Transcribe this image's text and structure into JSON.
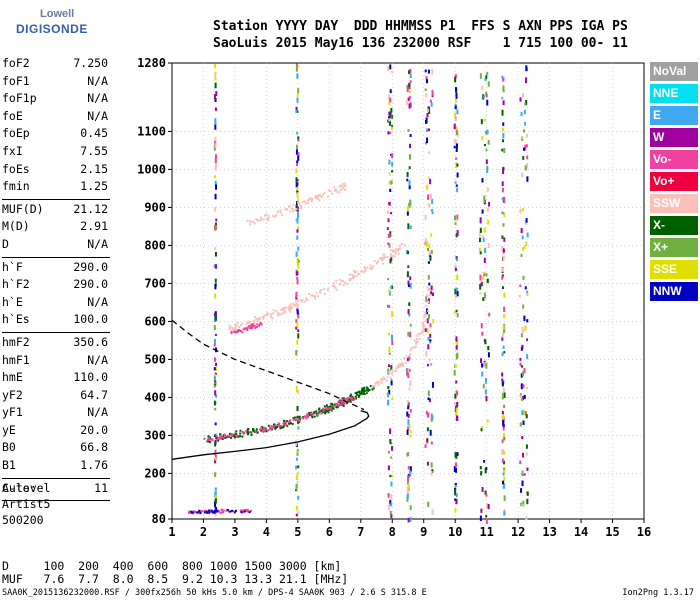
{
  "logo": {
    "line1": "Lowell",
    "line2": "DIGISONDE"
  },
  "header": {
    "line1": "Station YYYY DAY  DDD HHMMSS P1  FFS S AXN PPS IGA PS",
    "line2": "SaoLuis 2015 May16 136 232000 RSF    1 715 100 00- 11"
  },
  "params": [
    [
      {
        "k": "foF2",
        "v": "7.250"
      },
      {
        "k": "foF1",
        "v": "N/A"
      },
      {
        "k": "foF1p",
        "v": "N/A"
      },
      {
        "k": "foE",
        "v": "N/A"
      },
      {
        "k": "foEp",
        "v": "0.45"
      },
      {
        "k": "fxI",
        "v": "7.55"
      },
      {
        "k": "foEs",
        "v": "2.15"
      },
      {
        "k": "fmin",
        "v": "1.25"
      }
    ],
    [
      {
        "k": "MUF(D)",
        "v": "21.12"
      },
      {
        "k": "M(D)",
        "v": "2.91"
      },
      {
        "k": "D",
        "v": "N/A"
      }
    ],
    [
      {
        "k": "h`F",
        "v": "290.0"
      },
      {
        "k": "h`F2",
        "v": "290.0"
      },
      {
        "k": "h`E",
        "v": "N/A"
      },
      {
        "k": "h`Es",
        "v": "100.0"
      }
    ],
    [
      {
        "k": "hmF2",
        "v": "350.6"
      },
      {
        "k": "hmF1",
        "v": "N/A"
      },
      {
        "k": "hmE",
        "v": "110.0"
      },
      {
        "k": "yF2",
        "v": "64.7"
      },
      {
        "k": "yF1",
        "v": "N/A"
      },
      {
        "k": "yE",
        "v": "20.0"
      },
      {
        "k": "B0",
        "v": "66.8"
      },
      {
        "k": "B1",
        "v": "1.76"
      }
    ],
    [
      {
        "k": "C-level",
        "v": "11"
      }
    ]
  ],
  "auto": {
    "line1": "Auto:",
    "line2": "Artist5",
    "line3": "500200"
  },
  "muf_table": {
    "line1": "D     100  200  400  600  800 1000 1500 3000 [km]",
    "line2": "MUF   7.6  7.7  8.0  8.5  9.2 10.3 13.3 21.1 [MHz]"
  },
  "footer": {
    "left": "SAA0K_2015136232000.RSF / 300fx256h 50 kHs 5.0 km / DPS-4 SAA0K 903 / 2.6 S 315.8 E",
    "right": "Ion2Png 1.3.17"
  },
  "legend": [
    {
      "label": "NoVal",
      "color": "#a0a0a0"
    },
    {
      "label": "NNE",
      "color": "#00e0f0"
    },
    {
      "label": "E",
      "color": "#40a8f0"
    },
    {
      "label": "W",
      "color": "#a000a0"
    },
    {
      "label": "Vo-",
      "color": "#f040a0"
    },
    {
      "label": "Vo+",
      "color": "#f00040"
    },
    {
      "label": "SSW",
      "color": "#f8c0b8"
    },
    {
      "label": "X-",
      "color": "#006000"
    },
    {
      "label": "X+",
      "color": "#70b040"
    },
    {
      "label": "SSE",
      "color": "#e0e000"
    },
    {
      "label": "NNW",
      "color": "#0000c0"
    }
  ],
  "chart_data": {
    "type": "scatter",
    "xlim": [
      1,
      16
    ],
    "ylim": [
      80,
      1280
    ],
    "x_ticks": [
      "1",
      "2",
      "3",
      "4",
      "5",
      "6",
      "7",
      "8",
      "9",
      "10",
      "11",
      "12",
      "13",
      "14",
      "15",
      "16"
    ],
    "y_ticks": [
      "80",
      "200",
      "300",
      "400",
      "500",
      "600",
      "700",
      "800",
      "900",
      "1000",
      "1100",
      "1280"
    ],
    "profile_solid": [
      [
        1,
        237
      ],
      [
        2,
        249
      ],
      [
        3,
        258
      ],
      [
        4,
        268
      ],
      [
        5,
        283
      ],
      [
        6,
        303
      ],
      [
        6.8,
        325
      ],
      [
        7.2,
        345
      ],
      [
        7.25,
        351
      ],
      [
        7.2,
        360
      ],
      [
        7,
        365
      ]
    ],
    "profile_dashed": [
      [
        1,
        603
      ],
      [
        1.5,
        570
      ],
      [
        2,
        540
      ],
      [
        3,
        500
      ],
      [
        4,
        470
      ],
      [
        5,
        440
      ],
      [
        6,
        410
      ],
      [
        6.7,
        383
      ],
      [
        7.1,
        368
      ]
    ]
  }
}
